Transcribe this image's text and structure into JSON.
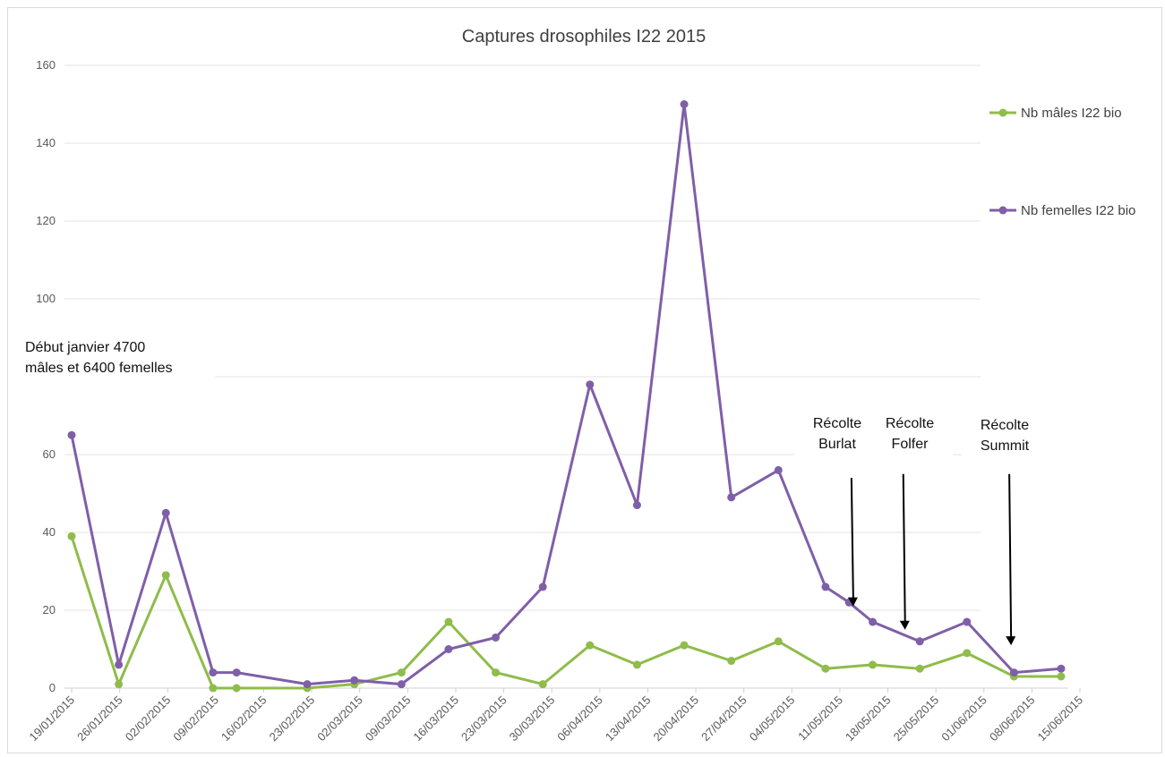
{
  "chart_data": {
    "type": "line",
    "title": "Captures drosophiles  I22 2015",
    "xlabel": "",
    "ylabel": "",
    "ylim": [
      0,
      160
    ],
    "yticks": [
      "0",
      "20",
      "40",
      "60",
      "",
      "100",
      "120",
      "140",
      "160"
    ],
    "categories": [
      "19/01/2015",
      "26/01/2015",
      "02/02/2015",
      "09/02/2015",
      "16/02/2015",
      "23/02/2015",
      "02/03/2015",
      "09/03/2015",
      "16/03/2015",
      "23/03/2015",
      "30/03/2015",
      "06/04/2015",
      "13/04/2015",
      "20/04/2015",
      "27/04/2015",
      "04/05/2015",
      "11/05/2015",
      "18/05/2015",
      "25/05/2015",
      "01/06/2015",
      "08/06/2015",
      "15/06/2015"
    ],
    "x_tick_offsets": [
      0,
      1,
      2,
      3,
      4,
      5,
      6,
      7,
      8,
      9,
      10,
      11,
      12,
      13,
      14,
      15,
      16,
      17,
      18,
      19,
      20,
      21
    ],
    "grid": true,
    "legend_position": "right",
    "series": [
      {
        "name": "Nb mâles I22 bio",
        "color": "#8fbc4a",
        "points": [
          [
            0,
            39
          ],
          [
            1,
            1
          ],
          [
            2,
            29
          ],
          [
            3,
            0
          ],
          [
            3.5,
            0
          ],
          [
            5,
            0
          ],
          [
            6,
            1
          ],
          [
            7,
            4
          ],
          [
            8,
            17
          ],
          [
            9,
            4
          ],
          [
            10,
            1
          ],
          [
            11,
            11
          ],
          [
            12,
            6
          ],
          [
            13,
            11
          ],
          [
            14,
            7
          ],
          [
            15,
            12
          ],
          [
            16,
            5
          ],
          [
            17,
            6
          ],
          [
            18,
            5
          ],
          [
            19,
            9
          ],
          [
            20,
            3
          ],
          [
            21,
            3
          ]
        ]
      },
      {
        "name": "Nb femelles I22 bio",
        "color": "#7f5fa8",
        "points": [
          [
            0,
            65
          ],
          [
            1,
            6
          ],
          [
            2,
            45
          ],
          [
            3,
            4
          ],
          [
            3.5,
            4
          ],
          [
            5,
            1
          ],
          [
            6,
            2
          ],
          [
            7,
            1
          ],
          [
            8,
            10
          ],
          [
            9,
            13
          ],
          [
            10,
            26
          ],
          [
            11,
            78
          ],
          [
            12,
            47
          ],
          [
            13,
            150
          ],
          [
            14,
            49
          ],
          [
            15,
            56
          ],
          [
            16,
            26
          ],
          [
            16.5,
            22
          ],
          [
            17,
            17
          ],
          [
            18,
            12
          ],
          [
            19,
            17
          ],
          [
            20,
            4
          ],
          [
            21,
            5
          ]
        ]
      }
    ],
    "annotations": [
      {
        "lines": [
          "Début janvier 4700",
          "mâles et 6400 femelles"
        ]
      },
      {
        "lines": [
          "Récolte",
          "Burlat"
        ],
        "arrow_x": 16.55,
        "arrow_y_top": 54,
        "arrow_y_bottom": 21
      },
      {
        "lines": [
          "Récolte",
          "Folfer"
        ],
        "arrow_x": 17.65,
        "arrow_y_top": 55,
        "arrow_y_bottom": 15
      },
      {
        "lines": [
          "Récolte",
          "Summit"
        ],
        "arrow_x": 19.9,
        "arrow_y_top": 55,
        "arrow_y_bottom": 11
      }
    ]
  }
}
